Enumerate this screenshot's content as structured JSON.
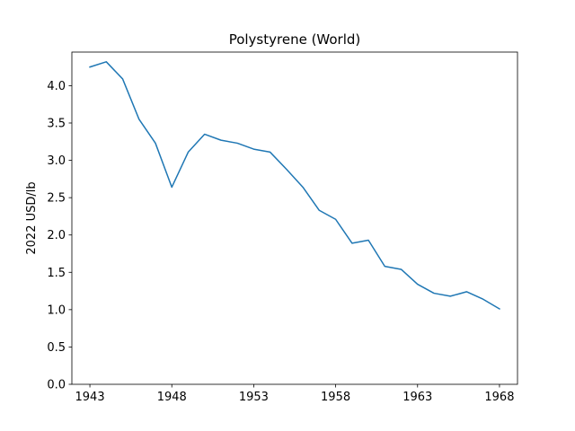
{
  "chart_data": {
    "type": "line",
    "title": "Polystyrene (World)",
    "xlabel": "",
    "ylabel": "2022 USD/lb",
    "xlim": [
      1941.9,
      1969.1
    ],
    "ylim": [
      0.0,
      4.45
    ],
    "x_ticks": [
      1943,
      1948,
      1953,
      1958,
      1963,
      1968
    ],
    "y_ticks": [
      0.0,
      0.5,
      1.0,
      1.5,
      2.0,
      2.5,
      3.0,
      3.5,
      4.0
    ],
    "y_tick_labels": [
      "0.0",
      "0.5",
      "1.0",
      "1.5",
      "2.0",
      "2.5",
      "3.0",
      "3.5",
      "4.0"
    ],
    "grid": false,
    "series": [
      {
        "color": "#1f77b4",
        "x": [
          1943,
          1944,
          1945,
          1946,
          1947,
          1948,
          1949,
          1950,
          1951,
          1952,
          1953,
          1954,
          1955,
          1956,
          1957,
          1958,
          1959,
          1960,
          1961,
          1962,
          1963,
          1964,
          1965,
          1966,
          1967,
          1968
        ],
        "y": [
          4.25,
          4.32,
          4.09,
          3.55,
          3.23,
          2.64,
          3.11,
          3.35,
          3.27,
          3.23,
          3.15,
          3.11,
          2.88,
          2.64,
          2.33,
          2.21,
          1.89,
          1.93,
          1.58,
          1.54,
          1.34,
          1.22,
          1.18,
          1.24,
          1.14,
          1.01
        ]
      }
    ]
  }
}
